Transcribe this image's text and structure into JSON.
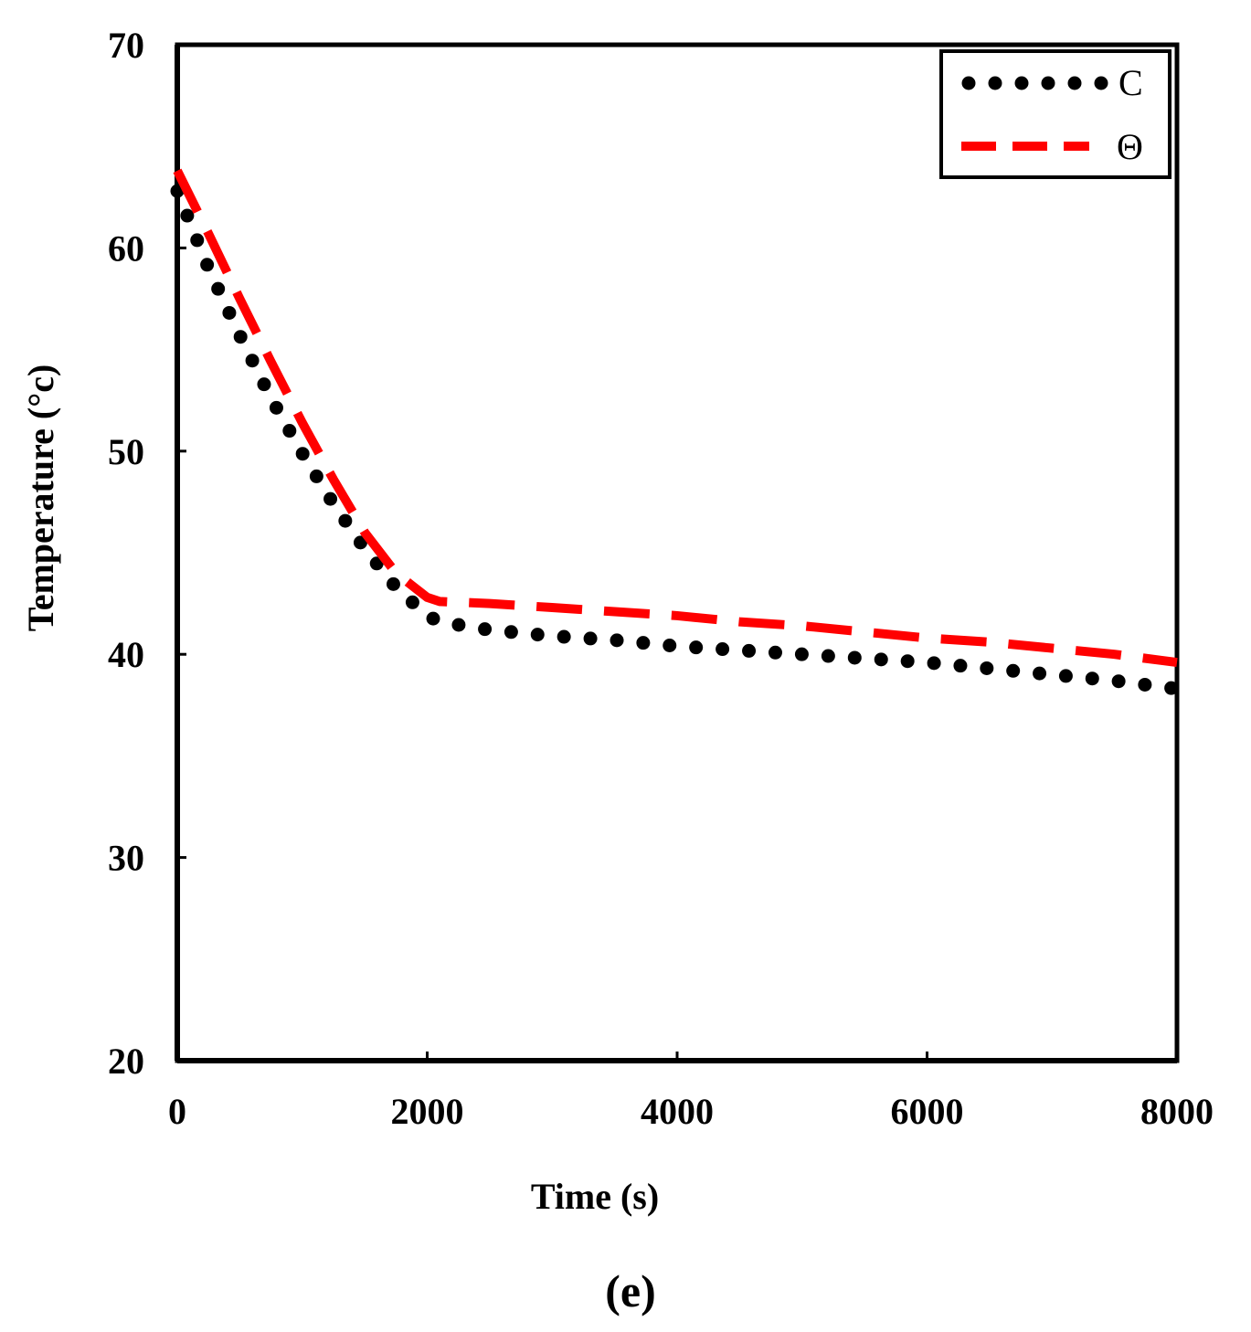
{
  "chart_data": {
    "type": "line",
    "title": "",
    "xlabel": "Time (s)",
    "ylabel": "Temperature (°c)",
    "panel_label": "(e)",
    "xlim": [
      0,
      8000
    ],
    "ylim": [
      20,
      70
    ],
    "xticks": [
      0,
      2000,
      4000,
      6000,
      8000
    ],
    "yticks": [
      20,
      30,
      40,
      50,
      60,
      70
    ],
    "grid": false,
    "legend_position": "top-right",
    "series": [
      {
        "name": "C",
        "style": "dotted",
        "color": "#000000",
        "x": [
          0,
          250,
          500,
          750,
          1000,
          1250,
          1500,
          1750,
          2000,
          2100,
          2500,
          3000,
          3500,
          4000,
          4500,
          5000,
          5500,
          6000,
          6500,
          7000,
          7500,
          8000
        ],
        "y": [
          62.8,
          59.0,
          55.7,
          52.6,
          49.9,
          47.4,
          45.2,
          43.3,
          41.9,
          41.6,
          41.2,
          40.9,
          40.7,
          40.4,
          40.2,
          40.0,
          39.8,
          39.6,
          39.3,
          39.0,
          38.7,
          38.3
        ]
      },
      {
        "name": "Θ",
        "style": "dashed",
        "color": "#ff0000",
        "x": [
          0,
          250,
          500,
          750,
          1000,
          1250,
          1500,
          1750,
          2000,
          2100,
          2500,
          3000,
          3500,
          4000,
          4500,
          5000,
          5500,
          6000,
          6500,
          7000,
          7500,
          8000
        ],
        "y": [
          63.8,
          60.7,
          57.5,
          54.4,
          51.4,
          48.6,
          46.0,
          44.0,
          42.8,
          42.6,
          42.5,
          42.3,
          42.1,
          41.9,
          41.6,
          41.4,
          41.1,
          40.8,
          40.6,
          40.3,
          40.0,
          39.6
        ]
      }
    ]
  }
}
